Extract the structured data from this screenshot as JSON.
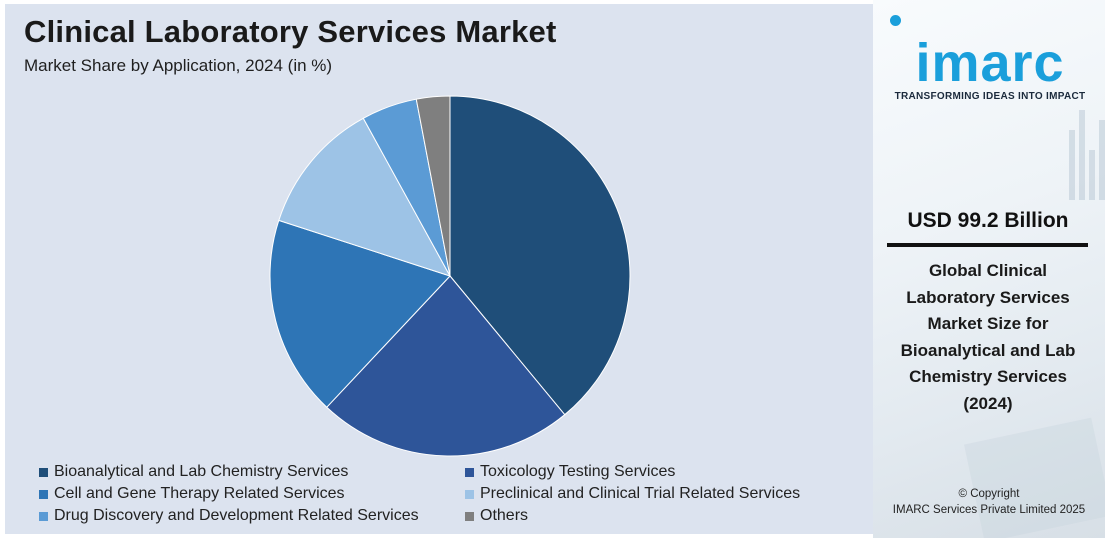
{
  "chart_data": {
    "type": "pie",
    "title": "Clinical Laboratory Services Market",
    "subtitle": "Market Share by Application, 2024 (in %)",
    "series": [
      {
        "name": "Bioanalytical and Lab Chemistry Services",
        "value": 39,
        "color": "#1f4e79"
      },
      {
        "name": "Toxicology Testing Services",
        "value": 23,
        "color": "#2e5599"
      },
      {
        "name": "Cell and Gene Therapy Related Services",
        "value": 18,
        "color": "#2e75b6"
      },
      {
        "name": "Preclinical and Clinical Trial Related Services",
        "value": 12,
        "color": "#9dc3e6"
      },
      {
        "name": "Drug Discovery and Development Related Services",
        "value": 5,
        "color": "#5b9bd5"
      },
      {
        "name": "Others",
        "value": 3,
        "color": "#7f7f7f"
      }
    ],
    "legend_order": [
      0,
      1,
      2,
      3,
      4,
      5
    ],
    "legend_position": "bottom"
  },
  "brand": {
    "logo_text": "imarc",
    "tagline": "TRANSFORMING IDEAS INTO IMPACT",
    "color": "#1a9fdb"
  },
  "highlight": {
    "value": "USD 99.2 Billion",
    "description": "Global Clinical Laboratory Services Market Size for Bioanalytical and Lab Chemistry Services (2024)"
  },
  "footer": {
    "copyright_line1": "© Copyright",
    "copyright_line2": "IMARC Services Private Limited 2025"
  }
}
